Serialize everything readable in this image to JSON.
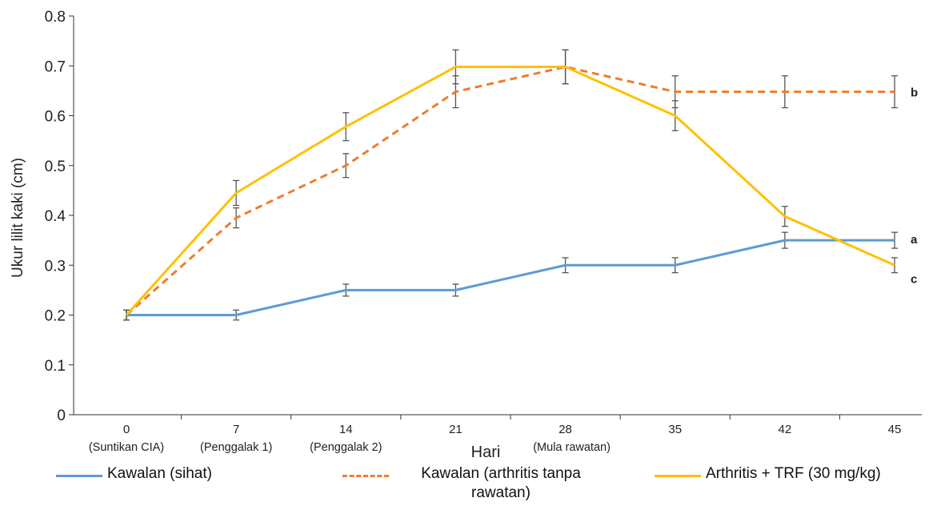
{
  "chart_data": {
    "type": "line",
    "xlabel": "Hari",
    "ylabel": "Ukur lilit kaki (cm)",
    "ylim": [
      0,
      0.8
    ],
    "y_ticks": [
      "0",
      "0.1",
      "0.2",
      "0.3",
      "0.4",
      "0.5",
      "0.6",
      "0.7",
      "0.8"
    ],
    "categories": [
      "0",
      "7",
      "14",
      "21",
      "28",
      "35",
      "42",
      "45"
    ],
    "sub_labels": [
      "(Suntikan CIA)",
      "(Penggalak 1)",
      "(Penggalak 2)",
      "",
      "(Mula rawatan)",
      "",
      "",
      ""
    ],
    "series": [
      {
        "name": "Kawalan (sihat)",
        "color": "#5B9BD5",
        "style": "solid",
        "values": [
          0.2,
          0.2,
          0.25,
          0.25,
          0.3,
          0.3,
          0.35,
          0.35
        ],
        "errors": [
          0.01,
          0.01,
          0.012,
          0.012,
          0.015,
          0.015,
          0.016,
          0.016
        ],
        "end_label": "a"
      },
      {
        "name": "Kawalan (arthritis tanpa rawatan)",
        "color": "#ED7D31",
        "style": "dashed",
        "values": [
          0.2,
          0.395,
          0.5,
          0.648,
          0.698,
          0.648,
          0.648,
          0.648
        ],
        "errors": [
          0.01,
          0.02,
          0.024,
          0.032,
          0.034,
          0.032,
          0.032,
          0.032
        ],
        "end_label": "b"
      },
      {
        "name": "Arthritis + TRF (30 mg/kg)",
        "color": "#FFC000",
        "style": "solid",
        "values": [
          0.2,
          0.445,
          0.578,
          0.698,
          0.698,
          0.6,
          0.398,
          0.3
        ],
        "errors": [
          0.01,
          0.025,
          0.028,
          0.034,
          0.034,
          0.03,
          0.02,
          0.015
        ],
        "end_label": "c"
      }
    ],
    "grid": false,
    "legend_position": "bottom"
  }
}
